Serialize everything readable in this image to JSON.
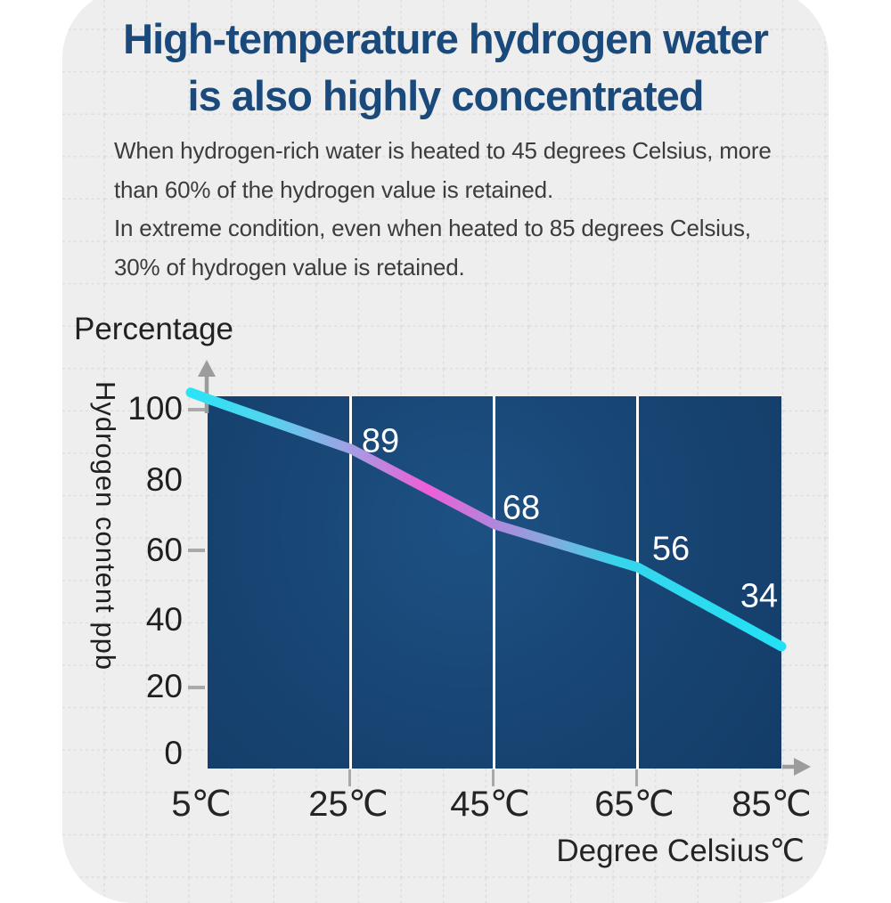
{
  "title": {
    "line1": "High-temperature hydrogen water",
    "line2": "is also highly concentrated"
  },
  "description": {
    "lines": [
      "When hydrogen-rich water is heated to 45 degrees Celsius, more",
      "than 60% of the hydrogen value is retained.",
      "In extreme condition, even when heated to 85 degrees Celsius,",
      "30% of hydrogen value is retained."
    ]
  },
  "chart_data": {
    "type": "line",
    "y_axis_caption": "Percentage",
    "y_axis_label": "Hydrogen content ppb",
    "x_axis_label": "Degree Celsius℃",
    "x": [
      5,
      25,
      45,
      65,
      85
    ],
    "x_tick_labels": [
      "5℃",
      "25℃",
      "45℃",
      "65℃",
      "85℃"
    ],
    "values": [
      103,
      89,
      68,
      56,
      34
    ],
    "point_labels": [
      "89",
      "68",
      "56",
      "34"
    ],
    "y_ticks": [
      "100",
      "80",
      "60",
      "40",
      "20",
      "0"
    ],
    "ylim": [
      0,
      110
    ],
    "gridlines_at_x": [
      25,
      45,
      65
    ],
    "legend": "none",
    "line_gradient": [
      {
        "offset": 0,
        "color": "#2ae3f6"
      },
      {
        "offset": 0.13,
        "color": "#53d4ef"
      },
      {
        "offset": 0.27,
        "color": "#a29fe4"
      },
      {
        "offset": 0.4,
        "color": "#ee5ed8"
      },
      {
        "offset": 0.51,
        "color": "#b385dc"
      },
      {
        "offset": 0.61,
        "color": "#84abdc"
      },
      {
        "offset": 0.72,
        "color": "#36d5ec"
      },
      {
        "offset": 1,
        "color": "#23e1f4"
      }
    ]
  },
  "colors": {
    "title": "#1a4a7c",
    "body_text": "#3c3c3c",
    "plot_background": "#174472",
    "plot_gridline": "#ffffff",
    "data_label": "#ffffff",
    "axis_arrow": "#9c9c9c",
    "paper_background": "#efeeee",
    "paper_grid": "#dcdbdb"
  }
}
